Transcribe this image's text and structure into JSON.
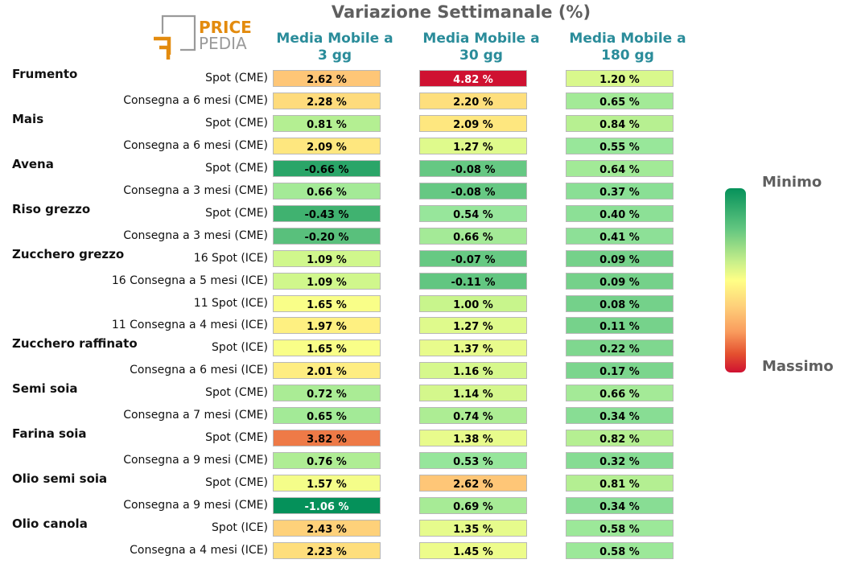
{
  "title": "Variazione Settimanale (%)",
  "logo": {
    "line1": "PRICE",
    "line2": "PEDIA"
  },
  "columns": [
    {
      "line1": "Media Mobile a",
      "line2": "3 gg"
    },
    {
      "line1": "Media Mobile a",
      "line2": "30 gg"
    },
    {
      "line1": "Media Mobile a",
      "line2": "180 gg"
    }
  ],
  "groups": [
    {
      "name": "Frumento",
      "rows": [
        0,
        1
      ]
    },
    {
      "name": "Mais",
      "rows": [
        2,
        3
      ]
    },
    {
      "name": "Avena",
      "rows": [
        4,
        5
      ]
    },
    {
      "name": "Riso grezzo",
      "rows": [
        6,
        7
      ]
    },
    {
      "name": "Zucchero grezzo",
      "rows": [
        8,
        9,
        10,
        11
      ]
    },
    {
      "name": "Zucchero raffinato",
      "rows": [
        12,
        13
      ]
    },
    {
      "name": "Semi soia",
      "rows": [
        14,
        15
      ]
    },
    {
      "name": "Farina soia",
      "rows": [
        16,
        17
      ]
    },
    {
      "name": "Olio semi soia",
      "rows": [
        18,
        19
      ]
    },
    {
      "name": "Olio canola",
      "rows": [
        20,
        21
      ]
    }
  ],
  "colorbar": {
    "top_label": "Minimo",
    "bottom_label": "Massimo"
  },
  "colors": {
    "title": "#5f5f5f",
    "column_header": "#2a8c9a",
    "scale_min": "#05915a",
    "scale_mid": "#ffff86",
    "scale_max": "#cf1131"
  },
  "chart_data": {
    "type": "heatmap",
    "title": "Variazione Settimanale (%)",
    "columns": [
      "Media Mobile a 3 gg",
      "Media Mobile a 30 gg",
      "Media Mobile a 180 gg"
    ],
    "rows": [
      {
        "label": "Spot (CME)",
        "values": [
          2.62,
          4.82,
          1.2
        ]
      },
      {
        "label": "Consegna a 6 mesi (CME)",
        "values": [
          2.28,
          2.2,
          0.65
        ]
      },
      {
        "label": "Spot (CME)",
        "values": [
          0.81,
          2.09,
          0.84
        ]
      },
      {
        "label": "Consegna a 6 mesi (CME)",
        "values": [
          2.09,
          1.27,
          0.55
        ]
      },
      {
        "label": "Spot (CME)",
        "values": [
          -0.66,
          -0.08,
          0.64
        ]
      },
      {
        "label": "Consegna a 3 mesi (CME)",
        "values": [
          0.66,
          -0.08,
          0.37
        ]
      },
      {
        "label": "Spot (CME)",
        "values": [
          -0.43,
          0.54,
          0.4
        ]
      },
      {
        "label": "Consegna a 3 mesi (CME)",
        "values": [
          -0.2,
          0.66,
          0.41
        ]
      },
      {
        "label": "16 Spot (ICE)",
        "values": [
          1.09,
          -0.07,
          0.09
        ]
      },
      {
        "label": "16 Consegna a 5 mesi (ICE)",
        "values": [
          1.09,
          -0.11,
          0.09
        ]
      },
      {
        "label": "11 Spot (ICE)",
        "values": [
          1.65,
          1.0,
          0.08
        ]
      },
      {
        "label": "11 Consegna a 4 mesi (ICE)",
        "values": [
          1.97,
          1.27,
          0.11
        ]
      },
      {
        "label": "Spot (ICE)",
        "values": [
          1.65,
          1.37,
          0.22
        ]
      },
      {
        "label": "Consegna a 6 mesi (ICE)",
        "values": [
          2.01,
          1.16,
          0.17
        ]
      },
      {
        "label": "Spot (CME)",
        "values": [
          0.72,
          1.14,
          0.66
        ]
      },
      {
        "label": "Consegna a 7 mesi (CME)",
        "values": [
          0.65,
          0.74,
          0.34
        ]
      },
      {
        "label": "Spot (CME)",
        "values": [
          3.82,
          1.38,
          0.82
        ]
      },
      {
        "label": "Consegna a 9 mesi (CME)",
        "values": [
          0.76,
          0.53,
          0.32
        ]
      },
      {
        "label": "Spot (CME)",
        "values": [
          1.57,
          2.62,
          0.81
        ]
      },
      {
        "label": "Consegna a 9 mesi (CME)",
        "values": [
          -1.06,
          0.69,
          0.34
        ]
      },
      {
        "label": "Spot (ICE)",
        "values": [
          2.43,
          1.35,
          0.58
        ]
      },
      {
        "label": "Consegna a 4 mesi (ICE)",
        "values": [
          2.23,
          1.45,
          0.58
        ]
      }
    ],
    "value_suffix": " %",
    "colormap": "RdYlGn_r",
    "colorbar_labels": [
      "Minimo",
      "Massimo"
    ]
  }
}
